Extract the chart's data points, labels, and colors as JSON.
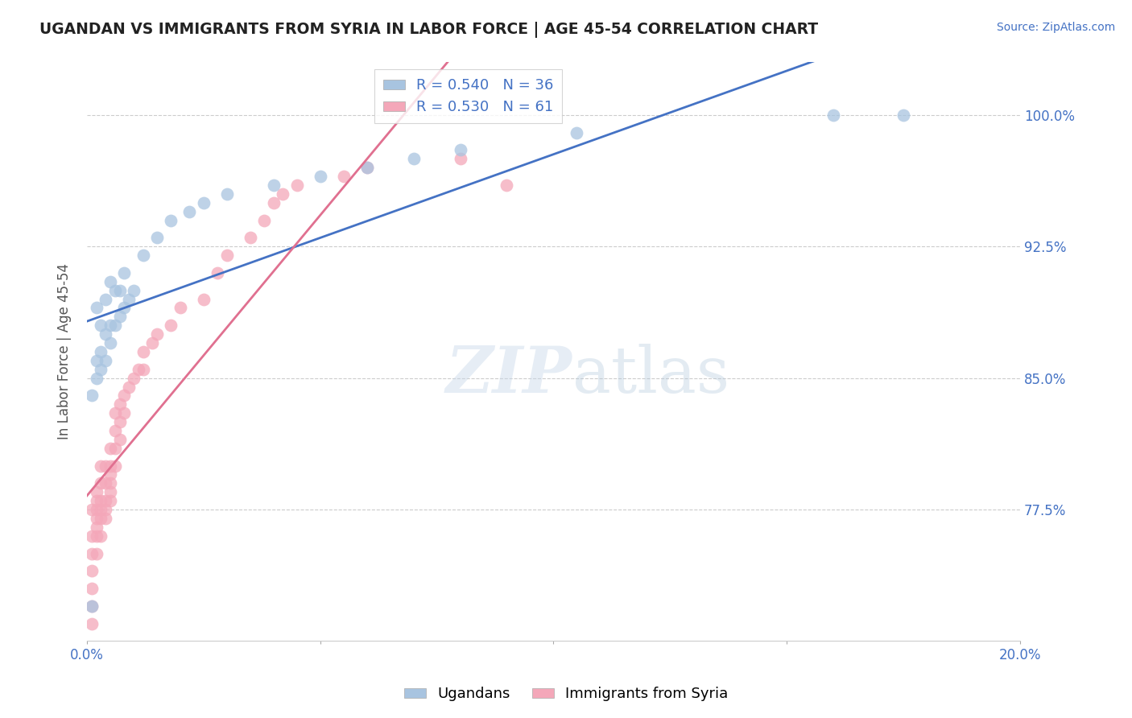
{
  "title": "UGANDAN VS IMMIGRANTS FROM SYRIA IN LABOR FORCE | AGE 45-54 CORRELATION CHART",
  "source": "Source: ZipAtlas.com",
  "ylabel": "In Labor Force | Age 45-54",
  "xlim": [
    0.0,
    0.2
  ],
  "ylim": [
    0.7,
    1.03
  ],
  "xticks": [
    0.0,
    0.05,
    0.1,
    0.15,
    0.2
  ],
  "xtick_labels": [
    "0.0%",
    "",
    "",
    "",
    "20.0%"
  ],
  "ytick_labels": [
    "100.0%",
    "92.5%",
    "85.0%",
    "77.5%"
  ],
  "yticks": [
    1.0,
    0.925,
    0.85,
    0.775
  ],
  "ugandan_color": "#a8c4e0",
  "syria_color": "#f4a7b9",
  "ugandan_line_color": "#4472c4",
  "syria_line_color": "#e07090",
  "legend_ugandan_label": "R = 0.540   N = 36",
  "legend_syria_label": "R = 0.530   N = 61",
  "ugandan_x": [
    0.001,
    0.001,
    0.002,
    0.002,
    0.002,
    0.003,
    0.003,
    0.003,
    0.004,
    0.004,
    0.004,
    0.005,
    0.005,
    0.005,
    0.006,
    0.006,
    0.007,
    0.007,
    0.008,
    0.008,
    0.009,
    0.01,
    0.012,
    0.015,
    0.018,
    0.022,
    0.025,
    0.03,
    0.04,
    0.05,
    0.06,
    0.07,
    0.08,
    0.105,
    0.16,
    0.175
  ],
  "ugandan_y": [
    0.72,
    0.84,
    0.85,
    0.86,
    0.89,
    0.855,
    0.865,
    0.88,
    0.86,
    0.875,
    0.895,
    0.87,
    0.88,
    0.905,
    0.88,
    0.9,
    0.885,
    0.9,
    0.89,
    0.91,
    0.895,
    0.9,
    0.92,
    0.93,
    0.94,
    0.945,
    0.95,
    0.955,
    0.96,
    0.965,
    0.97,
    0.975,
    0.98,
    0.99,
    1.0,
    1.0
  ],
  "syria_x": [
    0.001,
    0.001,
    0.001,
    0.001,
    0.001,
    0.001,
    0.001,
    0.002,
    0.002,
    0.002,
    0.002,
    0.002,
    0.002,
    0.002,
    0.003,
    0.003,
    0.003,
    0.003,
    0.003,
    0.003,
    0.004,
    0.004,
    0.004,
    0.004,
    0.004,
    0.005,
    0.005,
    0.005,
    0.005,
    0.005,
    0.005,
    0.006,
    0.006,
    0.006,
    0.006,
    0.007,
    0.007,
    0.007,
    0.008,
    0.008,
    0.009,
    0.01,
    0.011,
    0.012,
    0.012,
    0.014,
    0.015,
    0.018,
    0.02,
    0.025,
    0.028,
    0.03,
    0.035,
    0.038,
    0.04,
    0.042,
    0.045,
    0.055,
    0.06,
    0.08,
    0.09
  ],
  "syria_y": [
    0.71,
    0.72,
    0.73,
    0.74,
    0.75,
    0.76,
    0.775,
    0.75,
    0.76,
    0.765,
    0.77,
    0.775,
    0.78,
    0.785,
    0.76,
    0.77,
    0.775,
    0.78,
    0.79,
    0.8,
    0.77,
    0.775,
    0.78,
    0.79,
    0.8,
    0.78,
    0.785,
    0.79,
    0.795,
    0.8,
    0.81,
    0.8,
    0.81,
    0.82,
    0.83,
    0.815,
    0.825,
    0.835,
    0.83,
    0.84,
    0.845,
    0.85,
    0.855,
    0.855,
    0.865,
    0.87,
    0.875,
    0.88,
    0.89,
    0.895,
    0.91,
    0.92,
    0.93,
    0.94,
    0.95,
    0.955,
    0.96,
    0.965,
    0.97,
    0.975,
    0.96
  ]
}
